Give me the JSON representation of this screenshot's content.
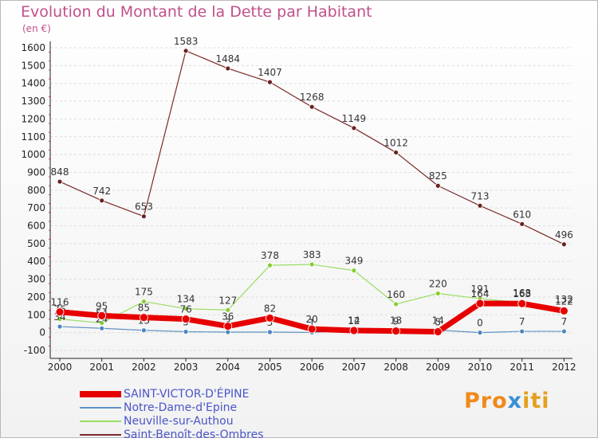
{
  "title": "Evolution du Montant de la Dette par Habitant",
  "unit": "(en €)",
  "logo": {
    "p1": "Pro",
    "x": "x",
    "p2": "iti"
  },
  "colors": {
    "title": "#c0508a",
    "legend_text": "#4a55c8",
    "axis": "#222222",
    "grid": "#dddddd"
  },
  "chart_data": {
    "type": "line",
    "title": "Evolution du Montant de la Dette par Habitant",
    "ylabel": "(en €)",
    "xlabel": "",
    "categories": [
      "2000",
      "2001",
      "2002",
      "2003",
      "2004",
      "2005",
      "2006",
      "2007",
      "2008",
      "2009",
      "2010",
      "2011",
      "2012"
    ],
    "ylim": [
      -100,
      1600
    ],
    "yticks": [
      -100,
      0,
      100,
      200,
      300,
      400,
      500,
      600,
      700,
      800,
      900,
      1000,
      1100,
      1200,
      1300,
      1400,
      1500,
      1600
    ],
    "series": [
      {
        "name": "Saint-Benoît-des-Ombres",
        "color": "#7a2a2a",
        "marker": "#6b2020",
        "width": 1.2,
        "labels": true,
        "values": [
          848,
          742,
          653,
          1583,
          1484,
          1407,
          1268,
          1149,
          1012,
          825,
          713,
          610,
          496
        ]
      },
      {
        "name": "Neuville-sur-Authou",
        "color": "#99dd66",
        "marker": "#88cc33",
        "width": 1.2,
        "labels": true,
        "values": [
          76,
          54,
          175,
          134,
          127,
          378,
          383,
          349,
          160,
          220,
          191,
          168,
          132
        ]
      },
      {
        "name": "Notre-Dame-d'Epine",
        "color": "#5f93c4",
        "marker": "#4a86c0",
        "width": 1.2,
        "labels": true,
        "values": [
          34,
          24,
          13,
          5,
          3,
          3,
          1,
          14,
          13,
          14,
          0,
          7,
          7
        ]
      },
      {
        "name": "SAINT-VICTOR-D'ÉPINE",
        "color": "#e60000",
        "marker": "#e60000",
        "width": 7,
        "labels": true,
        "values": [
          116,
          95,
          85,
          76,
          36,
          82,
          20,
          12,
          9,
          5,
          164,
          163,
          122
        ]
      }
    ]
  },
  "legend": [
    {
      "label": "SAINT-VICTOR-D'ÉPINE",
      "color": "#e60000",
      "thick": 8
    },
    {
      "label": "Notre-Dame-d'Epine",
      "color": "#5f93c4",
      "thick": 2
    },
    {
      "label": "Neuville-sur-Authou",
      "color": "#99dd66",
      "thick": 2
    },
    {
      "label": "Saint-Benoît-des-Ombres",
      "color": "#7a2a2a",
      "thick": 2
    }
  ]
}
